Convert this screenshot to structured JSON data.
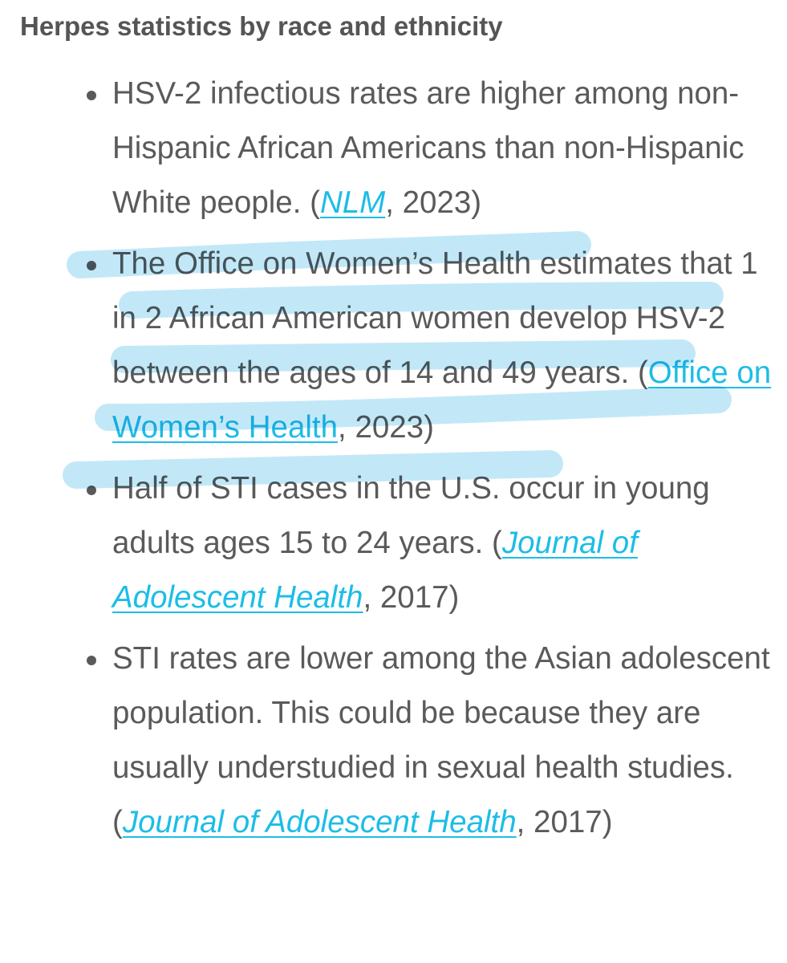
{
  "heading": "Herpes statistics by race and ethnicity",
  "items": [
    {
      "text": "HSV-2 infectious rates are higher among non-Hispanic African Americans than non-Hispanic White people. (",
      "link": "NLM",
      "after": ", 2023)"
    },
    {
      "text": "The Office on Women’s Health estimates that 1 in 2 African American women develop HSV-2 between the ages of 14 and 49 years. (",
      "link": "Office on Women’s Health",
      "after": ", 2023)"
    },
    {
      "text": "Half of STI cases in the U.S. occur in young adults ages 15 to 24 years. (",
      "link": "Journal of Adolescent Health",
      "after": ", 2017)"
    },
    {
      "text": "STI rates are lower among the Asian adolescent population. This could be because they are usually understudied in sexual health studies. (",
      "link": "Journal of Adolescent Health",
      "after": ", 2017)"
    }
  ]
}
